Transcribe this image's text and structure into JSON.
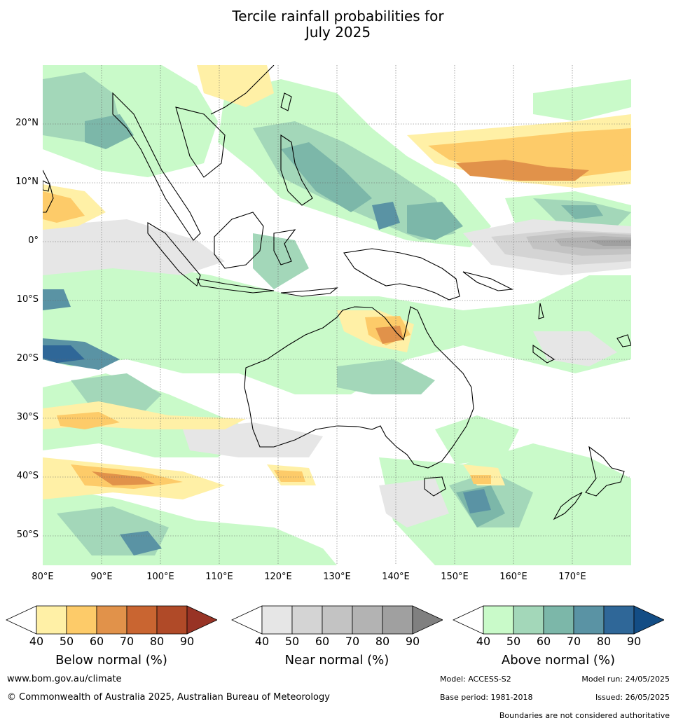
{
  "title": {
    "line1": "Tercile rainfall probabilities for",
    "line2": "July 2025"
  },
  "lat_labels": [
    "20°N",
    "10°N",
    "0°",
    "10°S",
    "20°S",
    "30°S",
    "40°S",
    "50°S"
  ],
  "lon_labels": [
    "80°E",
    "90°E",
    "100°E",
    "110°E",
    "120°E",
    "130°E",
    "140°E",
    "150°E",
    "160°E",
    "170°E"
  ],
  "colorbars": {
    "below": {
      "title": "Below normal (%)",
      "ticks": [
        "40",
        "50",
        "60",
        "70",
        "80",
        "90"
      ],
      "colors": [
        "#fff0a6",
        "#fdcb69",
        "#e1924a",
        "#c96531",
        "#b04a28",
        "#983325"
      ]
    },
    "near": {
      "title": "Near normal (%)",
      "ticks": [
        "40",
        "50",
        "60",
        "70",
        "80",
        "90"
      ],
      "colors": [
        "#e6e6e6",
        "#d4d4d4",
        "#c3c3c3",
        "#b3b3b3",
        "#a0a0a0",
        "#808080"
      ]
    },
    "above": {
      "title": "Above normal (%)",
      "ticks": [
        "40",
        "50",
        "60",
        "70",
        "80",
        "90"
      ],
      "colors": [
        "#c9fac9",
        "#a3d7b9",
        "#7cb7a9",
        "#5a93a4",
        "#2f6798",
        "#134d85"
      ]
    }
  },
  "footer": {
    "website": "www.bom.gov.au/climate",
    "copyright": "© Commonwealth of Australia 2025, Australian Bureau of Meteorology",
    "model": "Model: ACCESS-S2",
    "model_run": "Model run: 24/05/2025",
    "base_period": "Base period: 1981-2018",
    "issued": "Issued: 26/05/2025",
    "boundaries": "Boundaries are not considered authoritative"
  }
}
